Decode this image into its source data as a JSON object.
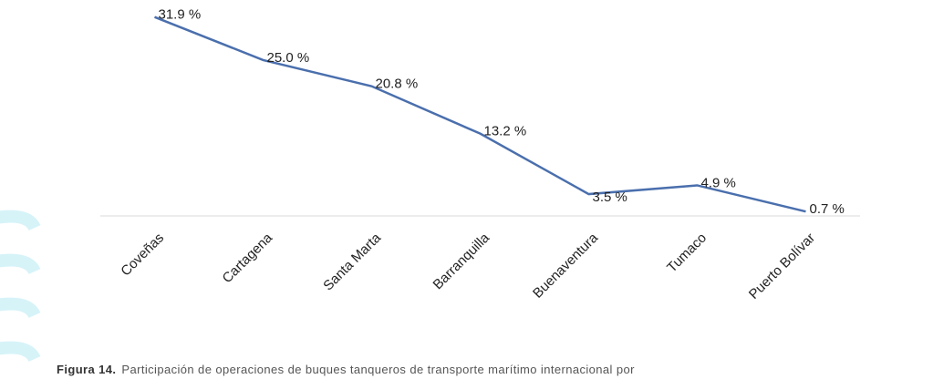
{
  "chart_data": {
    "type": "line",
    "categories": [
      "Coveñas",
      "Cartagena",
      "Santa Marta",
      "Barranquilla",
      "Buenaventura",
      "Tumaco",
      "Puerto Bolívar"
    ],
    "values": [
      31.9,
      25.0,
      20.8,
      13.2,
      3.5,
      4.9,
      0.7
    ],
    "value_labels": [
      "31.9 %",
      "25.0 %",
      "20.8 %",
      "13.2 %",
      "3.5 %",
      "4.9 %",
      "0.7 %"
    ],
    "color": "#4a6fad",
    "ylim": [
      0,
      32
    ]
  },
  "caption": {
    "label": "Figura 14.",
    "text": "Participación de operaciones de buques tanqueros de transporte marítimo internacional por"
  }
}
